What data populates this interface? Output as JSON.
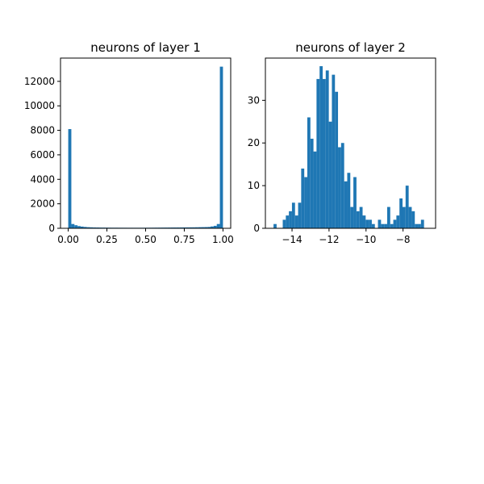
{
  "chart_data": [
    {
      "type": "bar",
      "title": "neurons of layer 1",
      "xlabel": "",
      "ylabel": "",
      "xlim": [
        -0.05,
        1.05
      ],
      "ylim": [
        0,
        13900
      ],
      "xticks": [
        0.0,
        0.25,
        0.5,
        0.75,
        1.0
      ],
      "xtick_labels": [
        "0.00",
        "0.25",
        "0.50",
        "0.75",
        "1.00"
      ],
      "yticks": [
        0,
        2000,
        4000,
        6000,
        8000,
        10000,
        12000
      ],
      "ytick_labels": [
        "0",
        "2000",
        "4000",
        "6000",
        "8000",
        "10000",
        "12000"
      ],
      "bar_color": "#1f77b4",
      "bin_start": 0.0,
      "bin_width": 0.02,
      "values": [
        8100,
        350,
        250,
        180,
        140,
        110,
        90,
        80,
        70,
        65,
        60,
        58,
        55,
        52,
        50,
        50,
        48,
        47,
        46,
        45,
        45,
        44,
        44,
        45,
        46,
        48,
        50,
        52,
        54,
        56,
        58,
        60,
        62,
        64,
        66,
        68,
        70,
        72,
        75,
        78,
        80,
        85,
        90,
        95,
        100,
        110,
        150,
        200,
        350,
        13200
      ]
    },
    {
      "type": "bar",
      "title": "neurons of layer 2",
      "xlabel": "",
      "ylabel": "",
      "xlim": [
        -15.44,
        -6.24
      ],
      "ylim": [
        0,
        39.9
      ],
      "xticks": [
        -14,
        -12,
        -10,
        -8
      ],
      "xtick_labels": [
        "−14",
        "−12",
        "−10",
        "−8"
      ],
      "yticks": [
        0,
        10,
        20,
        30
      ],
      "ytick_labels": [
        "0",
        "10",
        "20",
        "30"
      ],
      "bar_color": "#1f77b4",
      "bin_start": -15.0,
      "bin_width": 0.166,
      "values": [
        1,
        0,
        0,
        2,
        3,
        4,
        6,
        3,
        6,
        14,
        12,
        26,
        21,
        18,
        35,
        38,
        35,
        37,
        25,
        36,
        32,
        19,
        20,
        11,
        13,
        5,
        12,
        4,
        5,
        3,
        2,
        2,
        1,
        0,
        2,
        1,
        1,
        5,
        1,
        2,
        3,
        7,
        5,
        10,
        5,
        4,
        1,
        1,
        2
      ]
    }
  ]
}
